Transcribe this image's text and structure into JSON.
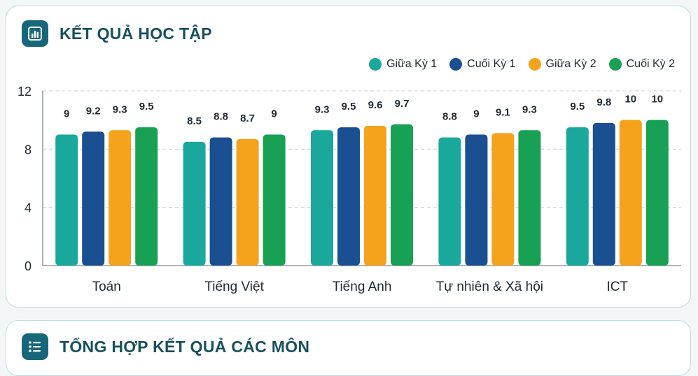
{
  "section1": {
    "title": "KẾT QUẢ HỌC TẬP",
    "icon": "bar-chart-icon"
  },
  "section2": {
    "title": "TỔNG HỢP KẾT QUẢ CÁC MÔN",
    "icon": "checklist-icon"
  },
  "colors": {
    "giua_ky_1": "#1aa89c",
    "cuoi_ky_1": "#1a4f92",
    "giua_ky_2": "#f5a21d",
    "cuoi_ky_2": "#18a154",
    "accent": "#17677a"
  },
  "chart_data": {
    "type": "bar",
    "categories": [
      "Toán",
      "Tiếng Việt",
      "Tiếng Anh",
      "Tự nhiên & Xã hội",
      "ICT"
    ],
    "series": [
      {
        "name": "Giữa Kỳ 1",
        "values": [
          9,
          8.5,
          9.3,
          8.8,
          9.5
        ]
      },
      {
        "name": "Cuối Kỳ 1",
        "values": [
          9.2,
          8.8,
          9.5,
          9,
          9.8
        ]
      },
      {
        "name": "Giữa Kỳ 2",
        "values": [
          9.3,
          8.7,
          9.6,
          9.1,
          10
        ]
      },
      {
        "name": "Cuối Kỳ 2",
        "values": [
          9.5,
          9,
          9.7,
          9.3,
          10
        ]
      }
    ],
    "yticks": [
      "0",
      "4",
      "8",
      "12"
    ],
    "ylim": [
      0,
      12
    ],
    "grid": true,
    "legend_position": "top-right"
  }
}
